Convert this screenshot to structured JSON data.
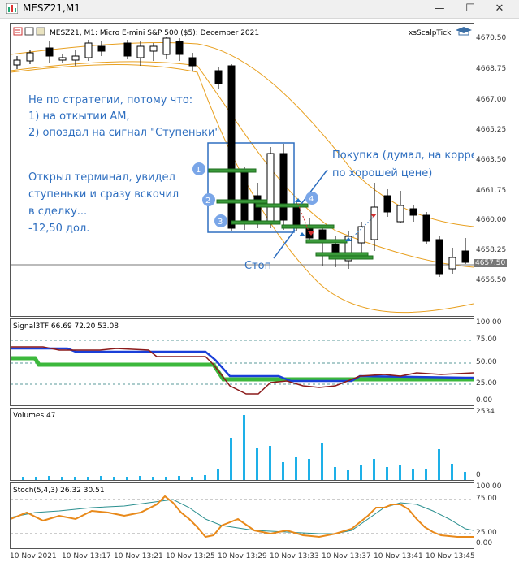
{
  "window": {
    "title": "MESZ21,M1",
    "minimize": "—",
    "maximize": "☐",
    "close": "✕"
  },
  "main_chart": {
    "header": "MESZ21, M1:  Micro E-mini S&P 500 ($5): December 2021",
    "indicator": "xsScalpTick",
    "current_price": "4657.50",
    "price_ticks": [
      "4670.50",
      "4668.75",
      "4667.00",
      "4665.25",
      "4663.50",
      "4661.75",
      "4660.00",
      "4658.25",
      "4656.50"
    ],
    "annotations": {
      "note_strategy_1": "Не по стратегии, потому что:",
      "note_strategy_2": "1) на откытии АМ,",
      "note_strategy_3": "2) опоздал на сигнал \"Ступеньки\"",
      "note_entry_1": "Открыл терминал, увидел",
      "note_entry_2": "ступеньки и сразу вскочил",
      "note_entry_3": "в сделку...",
      "note_entry_4": "-12,50 дол.",
      "buy_1": "Покупка (думал, на коррекции,",
      "buy_2": "по хорошей цене)",
      "stop": "Стоп",
      "marker_1": "1",
      "marker_2": "2",
      "marker_3": "3",
      "marker_4": "4"
    }
  },
  "signal_pane": {
    "header": "Signal3TF 66.69 72.20 53.08",
    "ticks": [
      "100.00",
      "75.00",
      "50.00",
      "25.00",
      "0.00"
    ]
  },
  "volume_pane": {
    "header": "Volumes 47",
    "ticks": [
      "2534",
      "0"
    ]
  },
  "stoch_pane": {
    "header": "Stoch(5,4,3) 26.32 30.51",
    "ticks": [
      "100.00",
      "75.00",
      "25.00",
      "0.00"
    ]
  },
  "time_axis": [
    "10 Nov 2021",
    "10 Nov 13:17",
    "10 Nov 13:21",
    "10 Nov 13:25",
    "10 Nov 13:29",
    "10 Nov 13:33",
    "10 Nov 13:37",
    "10 Nov 13:41",
    "10 Nov 13:45"
  ],
  "colors": {
    "bull_candle": "#ffffff",
    "bear_candle": "#000000",
    "envelope": "#e8a020",
    "annotation_text": "#2f6fc0",
    "level_bar": "#3a9a3a",
    "signal_fast": "#1a3fd8",
    "signal_slow": "#8b1a1a",
    "signal_base": "#3cb83c",
    "volume": "#1eb0e8",
    "stoch_main": "#e8891a",
    "stoch_signal": "#2a8f8f"
  }
}
